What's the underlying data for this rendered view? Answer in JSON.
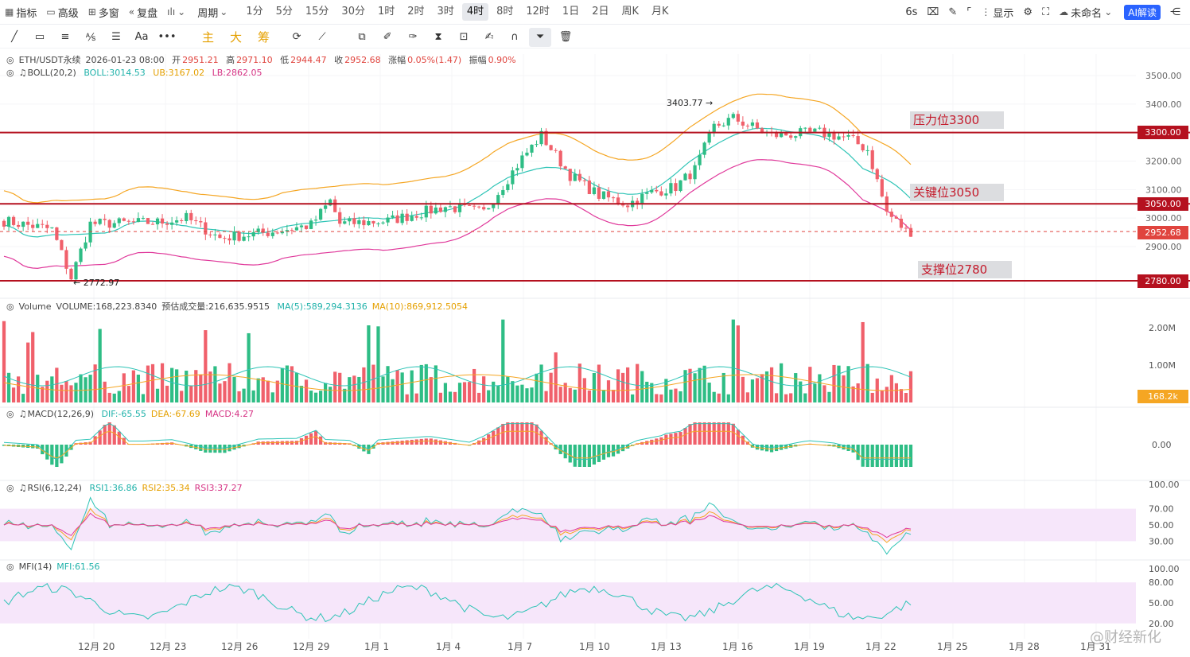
{
  "toolbar": {
    "indicators": "指标",
    "advanced": "高级",
    "multi_window": "多窗",
    "replay": "复盘",
    "chart_type_icon": "candle-icon",
    "period_label": "周期",
    "periods": [
      "1分",
      "5分",
      "15分",
      "30分",
      "1时",
      "2时",
      "3时",
      "4时",
      "8时",
      "12时",
      "1日",
      "2日",
      "周K",
      "月K"
    ],
    "active_period": "4时",
    "interval_badge": "6s",
    "display": "显示",
    "unnamed": "未命名",
    "ai": "AI解读"
  },
  "drawbar": {
    "chips": [
      "主",
      "大",
      "筹"
    ]
  },
  "main": {
    "symbol": "ETH/USDT永续",
    "datetime": "2026-01-23 08:00",
    "open_label": "开",
    "open": "2951.21",
    "high_label": "高",
    "high": "2971.10",
    "low_label": "低",
    "low": "2944.47",
    "close_label": "收",
    "close": "2952.68",
    "change_label": "涨幅",
    "change": "0.05%(1.47)",
    "amp_label": "振幅",
    "amp": "0.90%",
    "boll_name": "BOLL(20,2)",
    "boll_mid": "BOLL:3014.53",
    "boll_ub": "UB:3167.02",
    "boll_lb": "LB:2862.05",
    "max_label": "3403.77",
    "min_label": "2772.97",
    "levels": [
      {
        "label": "压力位3300",
        "price": "3300.00"
      },
      {
        "label": "关键位3050",
        "price": "3050.00"
      },
      {
        "label": "支撑位2780",
        "price": "2780.00"
      }
    ],
    "last_price_tag": "2952.68",
    "y_ticks": [
      "3500.00",
      "3400.00",
      "3300.00",
      "3200.00",
      "3100.00",
      "3000.00",
      "2900.00"
    ]
  },
  "volume": {
    "name": "Volume",
    "value": "VOLUME:168,223.8340",
    "forecast": "预估成交量:216,635.9515",
    "ma5": "MA(5):589,294.3136",
    "ma10": "MA(10):869,912.5054",
    "y_ticks": [
      "2.00M",
      "1.00M"
    ],
    "last_tag": "168.2k"
  },
  "macd": {
    "name": "MACD(12,26,9)",
    "dif": "DIF:-65.55",
    "dea": "DEA:-67.69",
    "macd": "MACD:4.27",
    "y_tick": "0.00"
  },
  "rsi": {
    "name": "RSI(6,12,24)",
    "rsi1": "RSI1:36.86",
    "rsi2": "RSI2:35.34",
    "rsi3": "RSI3:37.27",
    "y_ticks": [
      "100.00",
      "70.00",
      "50.00",
      "30.00"
    ]
  },
  "mfi": {
    "name": "MFI(14)",
    "value": "MFI:61.56",
    "y_ticks": [
      "100.00",
      "80.00",
      "50.00",
      "20.00"
    ]
  },
  "x_axis": [
    "12月 20",
    "12月 23",
    "12月 26",
    "12月 29",
    "1月 1",
    "1月 4",
    "1月 7",
    "1月 10",
    "1月 13",
    "1月 16",
    "1月 19",
    "1月 22",
    "1月 25",
    "1月 28",
    "1月 31"
  ],
  "watermark": "@财经新化",
  "colors": {
    "up": "#2ebd85",
    "down": "#f0606b",
    "level_line": "#b5111f",
    "boll_mid": "#2ec4b6",
    "boll_ub": "#f5a623",
    "boll_lb": "#e0399b",
    "accent": "#2a63ff"
  },
  "chart_data": {
    "type": "candlestick",
    "x": [
      "12月 20",
      "12月 23",
      "12月 26",
      "12月 29",
      "1月 1",
      "1月 4",
      "1月 7",
      "1月 10",
      "1月 13",
      "1月 16",
      "1月 19",
      "1月 22"
    ],
    "close_approx": [
      2990,
      2980,
      2950,
      2960,
      2980,
      3120,
      3280,
      3090,
      3120,
      3320,
      3310,
      2952.68
    ],
    "ylim": [
      2780,
      3520
    ]
  }
}
